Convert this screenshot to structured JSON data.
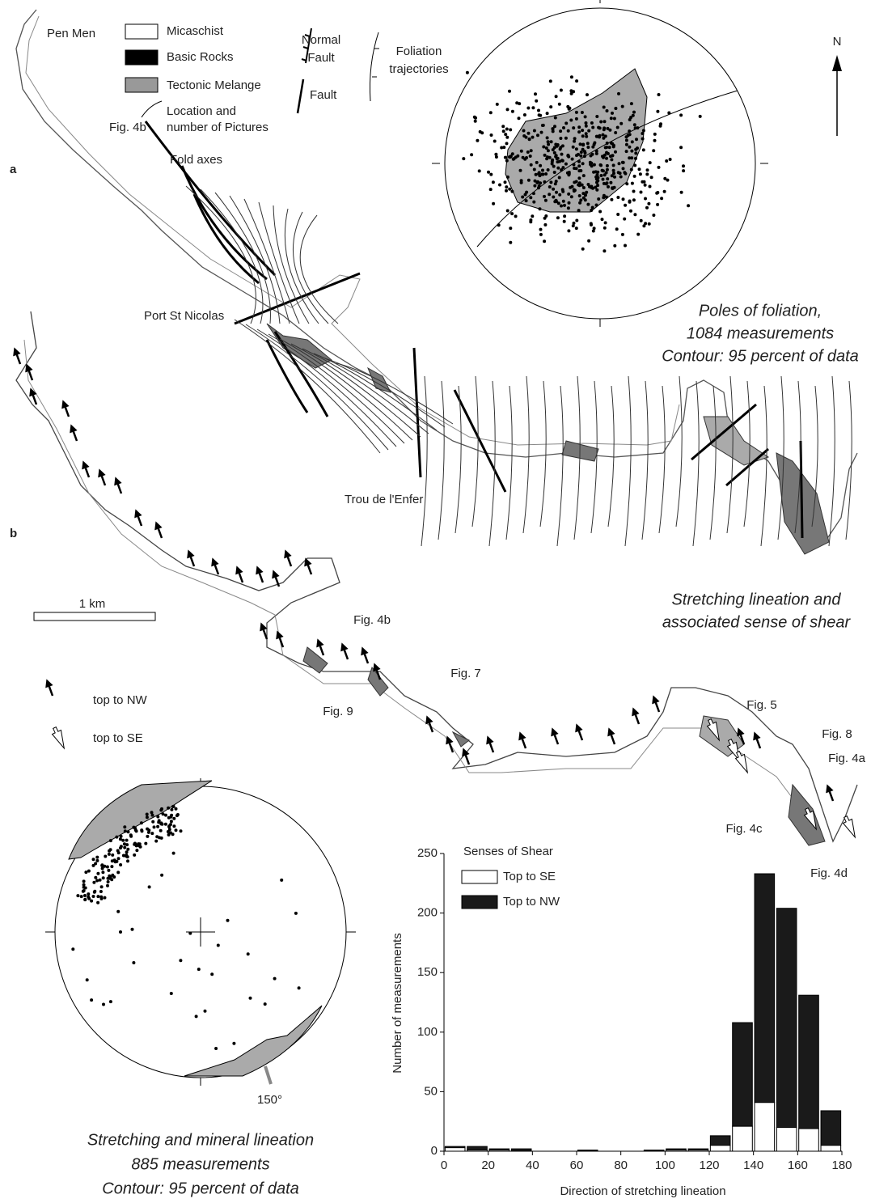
{
  "figure": {
    "map_a": {
      "label": "a",
      "place_pen_men": "Pen Men",
      "place_port": "Port St Nicolas",
      "place_trou": "Trou de l'Enfer",
      "fold_axes": "Fold axes",
      "north": "N"
    },
    "legend": {
      "micaschist": "Micaschist",
      "basic_rocks": "Basic Rocks",
      "melange": "Tectonic Melange",
      "location_example": "Fig. 4b",
      "location": [
        "Location and",
        "number of Pictures"
      ],
      "normal_fault": [
        "Normal",
        "Fault"
      ],
      "fault": "Fault",
      "foliation": [
        "Foliation",
        "trajectories"
      ]
    },
    "poles_caption": [
      "Poles of foliation,",
      "1084 measurements",
      "Contour: 95 percent of data"
    ],
    "map_b": {
      "label": "b",
      "caption": [
        "Stretching lineation and",
        "associated sense of shear"
      ],
      "scale": "1 km",
      "pictures": [
        "Fig. 4b",
        "Fig. 7",
        "Fig. 9",
        "Fig. 5",
        "Fig. 8",
        "Fig. 4a",
        "Fig. 4c",
        "Fig. 4d"
      ],
      "arrow_nw": "top to NW",
      "arrow_se": "top to SE"
    },
    "lineation_net": {
      "azimuth": "150°",
      "caption": [
        "Stretching and mineral lineation",
        "885 measurements",
        "Contour: 95 percent of data"
      ]
    }
  },
  "chart_data": {
    "type": "histogram",
    "title": "Senses of Shear",
    "x_label": "Direction of stretching lineation",
    "y_label": "Number of measurements",
    "bins": [
      0,
      10,
      20,
      30,
      40,
      50,
      60,
      70,
      80,
      90,
      100,
      110,
      120,
      130,
      140,
      150,
      160,
      170,
      180
    ],
    "series": [
      {
        "name": "Top to SE",
        "color": "#ffffff",
        "values": [
          3,
          1,
          1,
          0,
          0,
          0,
          0,
          0,
          0,
          0,
          1,
          1,
          5,
          21,
          41,
          20,
          19,
          5
        ]
      },
      {
        "name": "Top to NW",
        "color": "#1a1a1a",
        "values": [
          1,
          3,
          1,
          2,
          0,
          0,
          1,
          0,
          0,
          1,
          1,
          1,
          8,
          87,
          192,
          184,
          112,
          29
        ]
      }
    ],
    "stacked": true,
    "xlim": [
      0,
      180
    ],
    "ylim": [
      0,
      250
    ],
    "xticks": [
      0,
      20,
      40,
      60,
      80,
      100,
      120,
      140,
      160,
      180
    ],
    "yticks": [
      0,
      50,
      100,
      150,
      200,
      250
    ]
  }
}
